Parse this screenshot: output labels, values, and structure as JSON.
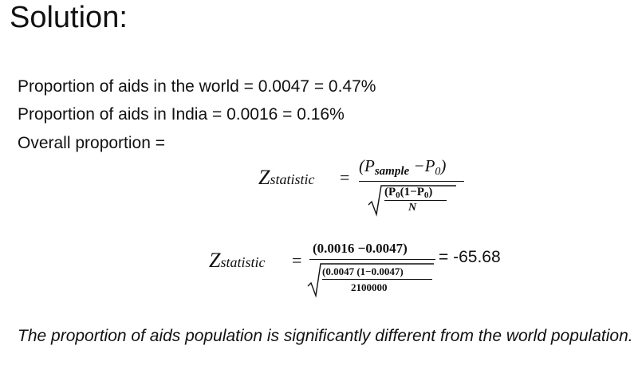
{
  "title": "Solution:",
  "lines": {
    "world": "Proportion of aids in the world = 0.0047  = 0.47%",
    "india": "Proportion of aids in India = 0.0016 = 0.16%",
    "overall": "Overall proportion ="
  },
  "formula_general": {
    "lhs_main": "Z",
    "lhs_sub": "statistic",
    "equals": "=",
    "num_open": "(",
    "num_p": "P",
    "num_p_sub": "sample",
    "num_minus": " −",
    "num_p0": "P",
    "num_p0_sub": "0",
    "num_close": ")",
    "den_top_open": "(P",
    "den_top_sub1": "0",
    "den_top_mid": "(1−P",
    "den_top_sub2": "0",
    "den_top_close": ")",
    "den_bottom": "N"
  },
  "formula_numeric": {
    "lhs_main": "Z",
    "lhs_sub": "statistic",
    "equals": "=",
    "numerator": "(0.0016 −0.0047)",
    "den_top": "(0.0047 (1−0.0047)",
    "den_bottom": "2100000",
    "result": "= -65.68"
  },
  "conclusion": "The proportion of aids population is significantly different from the world population."
}
